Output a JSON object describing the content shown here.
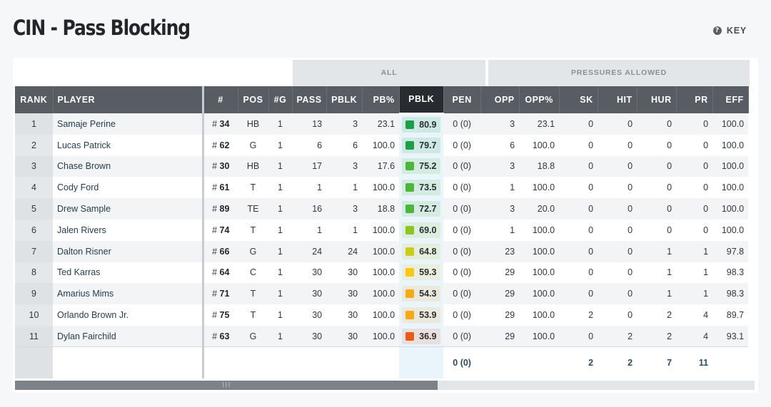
{
  "header": {
    "title": "CIN - Pass Blocking",
    "key_label": "KEY",
    "key_icon": "question-circle-icon"
  },
  "groups": {
    "all": "ALL",
    "pressures": "PRESSURES ALLOWED"
  },
  "columns": [
    "RANK",
    "PLAYER",
    "#",
    "POS",
    "#G",
    "PASS",
    "PBLK",
    "PB%",
    "PBLK",
    "PEN",
    "OPP",
    "OPP%",
    "SK",
    "HIT",
    "HUR",
    "PR",
    "EFF"
  ],
  "rows": [
    {
      "rank": "1",
      "player": "Samaje Perine",
      "num": "34",
      "pos": "HB",
      "g": "1",
      "pass": "13",
      "pblk": "3",
      "pbpct": "23.1",
      "grade": "80.9",
      "grade_color": "#1e9e4a",
      "pen": "0 (0)",
      "opp": "3",
      "opppct": "23.1",
      "sk": "0",
      "hit": "0",
      "hur": "0",
      "pr": "0",
      "eff": "100.0"
    },
    {
      "rank": "2",
      "player": "Lucas Patrick",
      "num": "62",
      "pos": "G",
      "g": "1",
      "pass": "6",
      "pblk": "6",
      "pbpct": "100.0",
      "grade": "79.7",
      "grade_color": "#1e9e4a",
      "pen": "0 (0)",
      "opp": "6",
      "opppct": "100.0",
      "sk": "0",
      "hit": "0",
      "hur": "0",
      "pr": "0",
      "eff": "100.0"
    },
    {
      "rank": "3",
      "player": "Chase Brown",
      "num": "30",
      "pos": "HB",
      "g": "1",
      "pass": "17",
      "pblk": "3",
      "pbpct": "17.6",
      "grade": "75.2",
      "grade_color": "#4cb53a",
      "pen": "0 (0)",
      "opp": "3",
      "opppct": "18.8",
      "sk": "0",
      "hit": "0",
      "hur": "0",
      "pr": "0",
      "eff": "100.0"
    },
    {
      "rank": "4",
      "player": "Cody Ford",
      "num": "61",
      "pos": "T",
      "g": "1",
      "pass": "1",
      "pblk": "1",
      "pbpct": "100.0",
      "grade": "73.5",
      "grade_color": "#4cb53a",
      "pen": "0 (0)",
      "opp": "1",
      "opppct": "100.0",
      "sk": "0",
      "hit": "0",
      "hur": "0",
      "pr": "0",
      "eff": "100.0"
    },
    {
      "rank": "5",
      "player": "Drew Sample",
      "num": "89",
      "pos": "TE",
      "g": "1",
      "pass": "16",
      "pblk": "3",
      "pbpct": "18.8",
      "grade": "72.7",
      "grade_color": "#4cb53a",
      "pen": "0 (0)",
      "opp": "3",
      "opppct": "20.0",
      "sk": "0",
      "hit": "0",
      "hur": "0",
      "pr": "0",
      "eff": "100.0"
    },
    {
      "rank": "6",
      "player": "Jalen Rivers",
      "num": "74",
      "pos": "T",
      "g": "1",
      "pass": "1",
      "pblk": "1",
      "pbpct": "100.0",
      "grade": "69.0",
      "grade_color": "#8cc422",
      "pen": "0 (0)",
      "opp": "1",
      "opppct": "100.0",
      "sk": "0",
      "hit": "0",
      "hur": "0",
      "pr": "0",
      "eff": "100.0"
    },
    {
      "rank": "7",
      "player": "Dalton Risner",
      "num": "66",
      "pos": "G",
      "g": "1",
      "pass": "24",
      "pblk": "24",
      "pbpct": "100.0",
      "grade": "64.8",
      "grade_color": "#c9cc1c",
      "pen": "0 (0)",
      "opp": "23",
      "opppct": "100.0",
      "sk": "0",
      "hit": "0",
      "hur": "1",
      "pr": "1",
      "eff": "97.8"
    },
    {
      "rank": "8",
      "player": "Ted Karras",
      "num": "64",
      "pos": "C",
      "g": "1",
      "pass": "30",
      "pblk": "30",
      "pbpct": "100.0",
      "grade": "59.3",
      "grade_color": "#f5c816",
      "pen": "0 (0)",
      "opp": "29",
      "opppct": "100.0",
      "sk": "0",
      "hit": "0",
      "hur": "1",
      "pr": "1",
      "eff": "98.3"
    },
    {
      "rank": "9",
      "player": "Amarius Mims",
      "num": "71",
      "pos": "T",
      "g": "1",
      "pass": "30",
      "pblk": "30",
      "pbpct": "100.0",
      "grade": "54.3",
      "grade_color": "#f5a818",
      "pen": "0 (0)",
      "opp": "29",
      "opppct": "100.0",
      "sk": "0",
      "hit": "0",
      "hur": "1",
      "pr": "1",
      "eff": "98.3"
    },
    {
      "rank": "10",
      "player": "Orlando Brown Jr.",
      "num": "75",
      "pos": "T",
      "g": "1",
      "pass": "30",
      "pblk": "30",
      "pbpct": "100.0",
      "grade": "53.9",
      "grade_color": "#f5a818",
      "pen": "0 (0)",
      "opp": "29",
      "opppct": "100.0",
      "sk": "2",
      "hit": "0",
      "hur": "2",
      "pr": "4",
      "eff": "89.7"
    },
    {
      "rank": "11",
      "player": "Dylan Fairchild",
      "num": "63",
      "pos": "G",
      "g": "1",
      "pass": "30",
      "pblk": "30",
      "pbpct": "100.0",
      "grade": "36.9",
      "grade_color": "#e85a1a",
      "pen": "0 (0)",
      "opp": "29",
      "opppct": "100.0",
      "sk": "0",
      "hit": "2",
      "hur": "2",
      "pr": "4",
      "eff": "93.1"
    }
  ],
  "totals": {
    "pen": "0 (0)",
    "sk": "2",
    "hit": "2",
    "hur": "7",
    "pr": "11"
  },
  "scrollbar": {
    "grip_icon": "drag-grip-icon"
  }
}
